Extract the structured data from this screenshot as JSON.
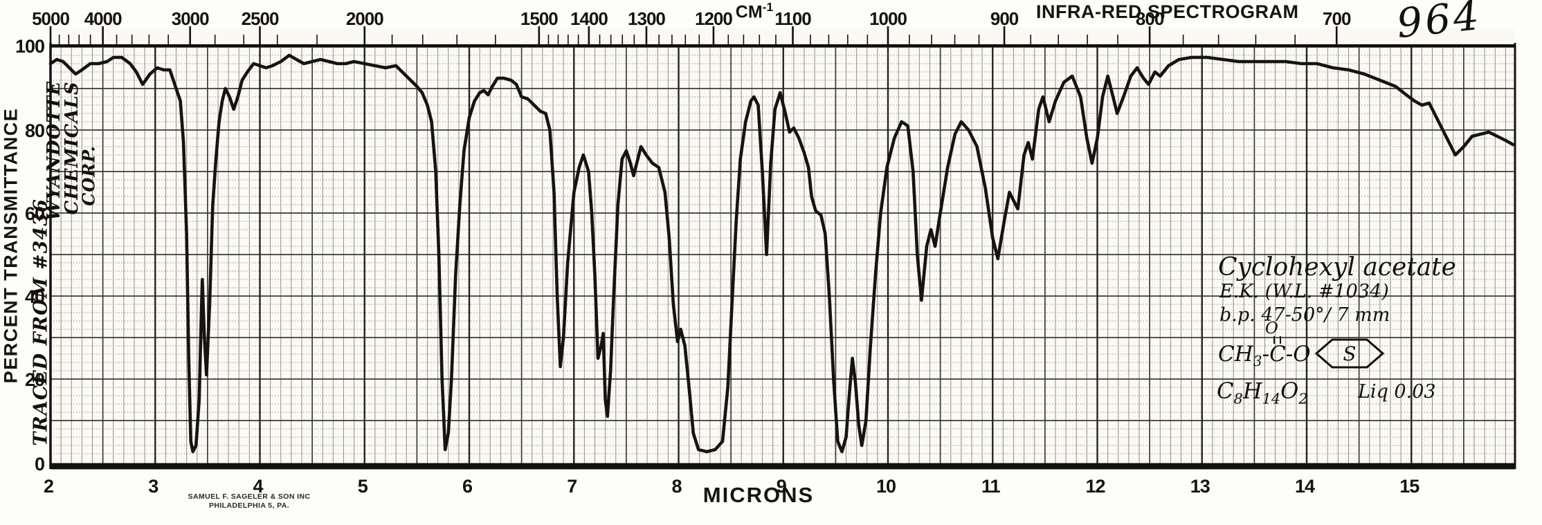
{
  "header": {
    "cm_unit": "CM",
    "cm_unit_sup": "-1",
    "title": "INFRA-RED SPECTROGRAM",
    "handwritten_page_number": "964"
  },
  "left_axis": {
    "label": "PERCENT TRANSMITTANCE",
    "tick_labels": [
      100,
      80,
      60,
      40,
      20,
      0
    ]
  },
  "top_axis": {
    "labeled_ticks_cm": [
      5000,
      4000,
      3000,
      2500,
      2000,
      1500,
      1400,
      1300,
      1200,
      1100,
      1000,
      900,
      800,
      700
    ],
    "minor_tick_ranges": [
      {
        "from": 5000,
        "to": 2000,
        "step": 200
      },
      {
        "from": 2000,
        "to": 1500,
        "step": 100
      },
      {
        "from": 1500,
        "to": 700,
        "step": 20
      }
    ]
  },
  "bottom_axis": {
    "label": "MICRONS",
    "tick_labels": [
      2,
      3,
      4,
      5,
      6,
      7,
      8,
      9,
      10,
      11,
      12,
      13,
      14,
      15
    ]
  },
  "handwriting": {
    "vendor_line1": "WYANDOTTE",
    "vendor_line2": "CHEMICALS",
    "vendor_line3": "CORP.",
    "traced_from": "TRACED FROM #3436",
    "sample": {
      "name": "Cyclohexyl acetate",
      "source": "E.K. (W.L. #1034)",
      "boiling_point": "b.p. 47-50°/ 7 mm",
      "carbonyl_oxygen": "O",
      "structure_prefix": "CH3-C-O",
      "ring_letter": "S",
      "formula": "C8H14O2",
      "note": "Liq 0.03"
    }
  },
  "imprint": {
    "line1": "SAMUEL F. SAGELER & SON INC",
    "line2": "PHILADELPHIA 5, PA."
  },
  "chart_data": {
    "type": "line",
    "title": "INFRA-RED SPECTROGRAM",
    "xlabel": "MICRONS",
    "ylabel": "PERCENT TRANSMITTANCE",
    "x2label": "CM-1 (top axis, = 10000 / microns)",
    "xlim": [
      2.0,
      15.99
    ],
    "ylim": [
      0,
      100
    ],
    "grid": true,
    "grid_minor_x_microns": 0.1,
    "grid_minor_y_percent": 2,
    "grid_major_y_percent": 10,
    "series_name": "Percent transmittance of cyclohexyl acetate",
    "points_microns_vs_percentT": [
      [
        2.0,
        96
      ],
      [
        2.06,
        97
      ],
      [
        2.12,
        96.5
      ],
      [
        2.18,
        95
      ],
      [
        2.24,
        93.5
      ],
      [
        2.3,
        94.5
      ],
      [
        2.38,
        96
      ],
      [
        2.46,
        96
      ],
      [
        2.54,
        96.5
      ],
      [
        2.6,
        97.5
      ],
      [
        2.68,
        97.5
      ],
      [
        2.76,
        96
      ],
      [
        2.82,
        94
      ],
      [
        2.88,
        91
      ],
      [
        2.95,
        93.5
      ],
      [
        3.02,
        95
      ],
      [
        3.08,
        94.5
      ],
      [
        3.14,
        94.5
      ],
      [
        3.2,
        90
      ],
      [
        3.24,
        87
      ],
      [
        3.27,
        77
      ],
      [
        3.3,
        55
      ],
      [
        3.32,
        25
      ],
      [
        3.34,
        5
      ],
      [
        3.36,
        2.5
      ],
      [
        3.39,
        4
      ],
      [
        3.42,
        15
      ],
      [
        3.44,
        35
      ],
      [
        3.45,
        44
      ],
      [
        3.47,
        30
      ],
      [
        3.49,
        21
      ],
      [
        3.52,
        38
      ],
      [
        3.55,
        62
      ],
      [
        3.58,
        73
      ],
      [
        3.61,
        82
      ],
      [
        3.64,
        87
      ],
      [
        3.67,
        90
      ],
      [
        3.71,
        88
      ],
      [
        3.75,
        85
      ],
      [
        3.79,
        88
      ],
      [
        3.83,
        92
      ],
      [
        3.88,
        94
      ],
      [
        3.94,
        96
      ],
      [
        4.0,
        95.5
      ],
      [
        4.06,
        95
      ],
      [
        4.12,
        95.5
      ],
      [
        4.2,
        96.5
      ],
      [
        4.28,
        98
      ],
      [
        4.35,
        97
      ],
      [
        4.42,
        96
      ],
      [
        4.5,
        96.5
      ],
      [
        4.58,
        97
      ],
      [
        4.66,
        96.5
      ],
      [
        4.74,
        96
      ],
      [
        4.82,
        96
      ],
      [
        4.9,
        96.5
      ],
      [
        5.0,
        96
      ],
      [
        5.1,
        95.5
      ],
      [
        5.2,
        95
      ],
      [
        5.3,
        95.5
      ],
      [
        5.38,
        93.5
      ],
      [
        5.44,
        92
      ],
      [
        5.5,
        90.5
      ],
      [
        5.55,
        89
      ],
      [
        5.6,
        86
      ],
      [
        5.64,
        82
      ],
      [
        5.68,
        70
      ],
      [
        5.71,
        50
      ],
      [
        5.74,
        20
      ],
      [
        5.77,
        3
      ],
      [
        5.8,
        7
      ],
      [
        5.83,
        20
      ],
      [
        5.87,
        45
      ],
      [
        5.91,
        62
      ],
      [
        5.95,
        75
      ],
      [
        6.0,
        83
      ],
      [
        6.05,
        87
      ],
      [
        6.1,
        89
      ],
      [
        6.14,
        89.5
      ],
      [
        6.18,
        88.5
      ],
      [
        6.22,
        90.5
      ],
      [
        6.27,
        92.5
      ],
      [
        6.33,
        92.5
      ],
      [
        6.4,
        92
      ],
      [
        6.45,
        91
      ],
      [
        6.5,
        88
      ],
      [
        6.56,
        87.5
      ],
      [
        6.62,
        86
      ],
      [
        6.68,
        84.5
      ],
      [
        6.73,
        84
      ],
      [
        6.77,
        80
      ],
      [
        6.81,
        65
      ],
      [
        6.84,
        40
      ],
      [
        6.87,
        23
      ],
      [
        6.9,
        30
      ],
      [
        6.94,
        48
      ],
      [
        7.0,
        65
      ],
      [
        7.05,
        71
      ],
      [
        7.09,
        74
      ],
      [
        7.14,
        70
      ],
      [
        7.17,
        60
      ],
      [
        7.2,
        45
      ],
      [
        7.23,
        25
      ],
      [
        7.26,
        28
      ],
      [
        7.28,
        31
      ],
      [
        7.3,
        15
      ],
      [
        7.32,
        11
      ],
      [
        7.35,
        22
      ],
      [
        7.38,
        40
      ],
      [
        7.42,
        62
      ],
      [
        7.46,
        73
      ],
      [
        7.5,
        75
      ],
      [
        7.54,
        72
      ],
      [
        7.57,
        69
      ],
      [
        7.6,
        72
      ],
      [
        7.64,
        76
      ],
      [
        7.69,
        74
      ],
      [
        7.75,
        72
      ],
      [
        7.81,
        71
      ],
      [
        7.87,
        65
      ],
      [
        7.91,
        54
      ],
      [
        7.95,
        38
      ],
      [
        7.99,
        29
      ],
      [
        8.02,
        32
      ],
      [
        8.06,
        28
      ],
      [
        8.1,
        18
      ],
      [
        8.14,
        7
      ],
      [
        8.19,
        3
      ],
      [
        8.27,
        2.5
      ],
      [
        8.35,
        3
      ],
      [
        8.42,
        5
      ],
      [
        8.47,
        18
      ],
      [
        8.51,
        38
      ],
      [
        8.55,
        58
      ],
      [
        8.59,
        73
      ],
      [
        8.64,
        82
      ],
      [
        8.69,
        87
      ],
      [
        8.72,
        88
      ],
      [
        8.76,
        86
      ],
      [
        8.8,
        70
      ],
      [
        8.84,
        50
      ],
      [
        8.88,
        72
      ],
      [
        8.92,
        85
      ],
      [
        8.97,
        89
      ],
      [
        9.02,
        84
      ],
      [
        9.06,
        79.5
      ],
      [
        9.1,
        80.5
      ],
      [
        9.15,
        78
      ],
      [
        9.2,
        74.5
      ],
      [
        9.24,
        71
      ],
      [
        9.27,
        64
      ],
      [
        9.31,
        60.5
      ],
      [
        9.36,
        59.5
      ],
      [
        9.4,
        55
      ],
      [
        9.44,
        40
      ],
      [
        9.48,
        20
      ],
      [
        9.52,
        5
      ],
      [
        9.56,
        2.5
      ],
      [
        9.6,
        6
      ],
      [
        9.63,
        16
      ],
      [
        9.66,
        25
      ],
      [
        9.69,
        19
      ],
      [
        9.72,
        9
      ],
      [
        9.75,
        4
      ],
      [
        9.79,
        10
      ],
      [
        9.83,
        27
      ],
      [
        9.88,
        45
      ],
      [
        9.93,
        60
      ],
      [
        9.99,
        71
      ],
      [
        10.06,
        78
      ],
      [
        10.13,
        82
      ],
      [
        10.19,
        81
      ],
      [
        10.24,
        70
      ],
      [
        10.28,
        50
      ],
      [
        10.32,
        39
      ],
      [
        10.37,
        52
      ],
      [
        10.41,
        56
      ],
      [
        10.45,
        52
      ],
      [
        10.5,
        60
      ],
      [
        10.57,
        71
      ],
      [
        10.64,
        79
      ],
      [
        10.7,
        82
      ],
      [
        10.77,
        80
      ],
      [
        10.85,
        76
      ],
      [
        10.93,
        66
      ],
      [
        11.0,
        54
      ],
      [
        11.05,
        49
      ],
      [
        11.11,
        58
      ],
      [
        11.16,
        65
      ],
      [
        11.2,
        63
      ],
      [
        11.24,
        61
      ],
      [
        11.3,
        74
      ],
      [
        11.34,
        77
      ],
      [
        11.38,
        73
      ],
      [
        11.44,
        85
      ],
      [
        11.48,
        88
      ],
      [
        11.54,
        82
      ],
      [
        11.6,
        87
      ],
      [
        11.68,
        91.5
      ],
      [
        11.76,
        93
      ],
      [
        11.84,
        88
      ],
      [
        11.9,
        78
      ],
      [
        11.95,
        72
      ],
      [
        12.0,
        78
      ],
      [
        12.05,
        88
      ],
      [
        12.1,
        93
      ],
      [
        12.15,
        88
      ],
      [
        12.19,
        84
      ],
      [
        12.25,
        88
      ],
      [
        12.32,
        93
      ],
      [
        12.38,
        95
      ],
      [
        12.44,
        92.5
      ],
      [
        12.49,
        91
      ],
      [
        12.55,
        94
      ],
      [
        12.6,
        93
      ],
      [
        12.68,
        95.5
      ],
      [
        12.78,
        97
      ],
      [
        12.9,
        97.5
      ],
      [
        13.05,
        97.5
      ],
      [
        13.2,
        97
      ],
      [
        13.35,
        96.5
      ],
      [
        13.5,
        96.5
      ],
      [
        13.65,
        96.5
      ],
      [
        13.8,
        96.5
      ],
      [
        13.95,
        96
      ],
      [
        14.1,
        96
      ],
      [
        14.25,
        95
      ],
      [
        14.4,
        94.5
      ],
      [
        14.55,
        93.5
      ],
      [
        14.7,
        92
      ],
      [
        14.85,
        90.5
      ],
      [
        14.95,
        88.5
      ],
      [
        15.03,
        87
      ],
      [
        15.1,
        86
      ],
      [
        15.17,
        86.5
      ],
      [
        15.24,
        83
      ],
      [
        15.32,
        79
      ],
      [
        15.42,
        74
      ],
      [
        15.5,
        76
      ],
      [
        15.58,
        78.5
      ],
      [
        15.66,
        79
      ],
      [
        15.74,
        79.5
      ],
      [
        15.82,
        78.5
      ],
      [
        15.9,
        77.5
      ],
      [
        15.97,
        76.5
      ]
    ]
  }
}
